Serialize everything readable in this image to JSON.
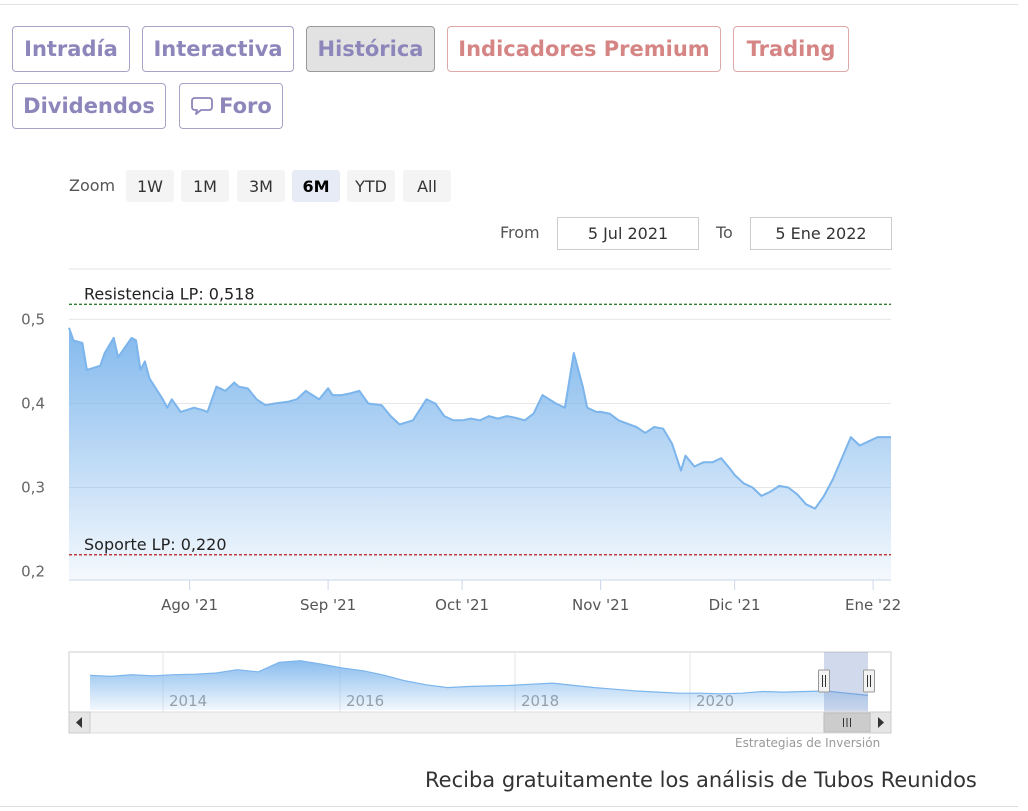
{
  "tabs": [
    {
      "label": "Intradía"
    },
    {
      "label": "Interactiva"
    },
    {
      "label": "Histórica"
    },
    {
      "label": "Indicadores Premium"
    },
    {
      "label": "Trading"
    },
    {
      "label": "Dividendos"
    },
    {
      "label": "Foro"
    }
  ],
  "zoom": {
    "label": "Zoom",
    "buttons": [
      "1W",
      "1M",
      "3M",
      "6M",
      "YTD",
      "All"
    ],
    "selected": "6M"
  },
  "range": {
    "from_label": "From",
    "from_value": "5 Jul 2021",
    "to_label": "To",
    "to_value": "5 Ene 2022"
  },
  "chart_data": {
    "type": "area",
    "xlim": [
      "2021-07-05",
      "2022-01-05"
    ],
    "ylim": [
      0.19,
      0.535
    ],
    "yticks": [
      0.2,
      0.3,
      0.4,
      0.5
    ],
    "ytick_labels": [
      "0,2",
      "0,3",
      "0,4",
      "0,5"
    ],
    "xticks": [
      {
        "date": "2021-08-01",
        "label": "Ago '21"
      },
      {
        "date": "2021-09-01",
        "label": "Sep '21"
      },
      {
        "date": "2021-10-01",
        "label": "Oct '21"
      },
      {
        "date": "2021-11-01",
        "label": "Nov '21"
      },
      {
        "date": "2021-12-01",
        "label": "Dic '21"
      },
      {
        "date": "2022-01-01",
        "label": "Ene '22"
      }
    ],
    "grid": true,
    "color": "#7cb5ec",
    "series": [
      {
        "x": [
          "2021-07-05",
          "2021-07-06",
          "2021-07-08",
          "2021-07-09",
          "2021-07-12",
          "2021-07-13",
          "2021-07-15",
          "2021-07-16",
          "2021-07-19",
          "2021-07-20",
          "2021-07-21",
          "2021-07-22",
          "2021-07-23",
          "2021-07-26",
          "2021-07-27",
          "2021-07-28",
          "2021-07-30",
          "2021-08-02",
          "2021-08-04",
          "2021-08-05",
          "2021-08-07",
          "2021-08-09",
          "2021-08-11",
          "2021-08-12",
          "2021-08-14",
          "2021-08-16",
          "2021-08-18",
          "2021-08-20",
          "2021-08-23",
          "2021-08-25",
          "2021-08-27",
          "2021-08-30",
          "2021-09-01",
          "2021-09-02",
          "2021-09-04",
          "2021-09-06",
          "2021-09-08",
          "2021-09-10",
          "2021-09-13",
          "2021-09-15",
          "2021-09-17",
          "2021-09-20",
          "2021-09-23",
          "2021-09-25",
          "2021-09-27",
          "2021-09-29",
          "2021-10-01",
          "2021-10-03",
          "2021-10-05",
          "2021-10-07",
          "2021-10-09",
          "2021-10-11",
          "2021-10-13",
          "2021-10-15",
          "2021-10-17",
          "2021-10-19",
          "2021-10-22",
          "2021-10-24",
          "2021-10-26",
          "2021-10-28",
          "2021-10-29",
          "2021-10-31",
          "2021-11-01",
          "2021-11-03",
          "2021-11-05",
          "2021-11-07",
          "2021-11-09",
          "2021-11-11",
          "2021-11-13",
          "2021-11-15",
          "2021-11-17",
          "2021-11-19",
          "2021-11-20",
          "2021-11-22",
          "2021-11-24",
          "2021-11-26",
          "2021-11-28",
          "2021-11-30",
          "2021-12-01",
          "2021-12-03",
          "2021-12-05",
          "2021-12-07",
          "2021-12-09",
          "2021-12-11",
          "2021-12-13",
          "2021-12-15",
          "2021-12-17",
          "2021-12-19",
          "2021-12-21",
          "2021-12-23",
          "2021-12-25",
          "2021-12-27",
          "2021-12-29",
          "2021-12-31",
          "2022-01-02",
          "2022-01-03",
          "2022-01-05"
        ],
        "y": [
          0.49,
          0.475,
          0.472,
          0.44,
          0.445,
          0.46,
          0.478,
          0.455,
          0.478,
          0.475,
          0.44,
          0.45,
          0.43,
          0.405,
          0.395,
          0.405,
          0.39,
          0.395,
          0.392,
          0.39,
          0.42,
          0.415,
          0.425,
          0.42,
          0.418,
          0.405,
          0.398,
          0.4,
          0.402,
          0.405,
          0.415,
          0.405,
          0.418,
          0.41,
          0.41,
          0.412,
          0.415,
          0.4,
          0.398,
          0.385,
          0.375,
          0.38,
          0.405,
          0.4,
          0.385,
          0.38,
          0.38,
          0.382,
          0.38,
          0.385,
          0.382,
          0.385,
          0.383,
          0.38,
          0.388,
          0.41,
          0.4,
          0.395,
          0.46,
          0.42,
          0.395,
          0.39,
          0.39,
          0.388,
          0.38,
          0.376,
          0.372,
          0.365,
          0.372,
          0.37,
          0.352,
          0.32,
          0.338,
          0.325,
          0.33,
          0.33,
          0.335,
          0.322,
          0.315,
          0.305,
          0.3,
          0.29,
          0.295,
          0.302,
          0.3,
          0.292,
          0.28,
          0.275,
          0.29,
          0.31,
          0.335,
          0.36,
          0.35,
          0.355,
          0.36,
          0.36,
          0.36
        ]
      }
    ],
    "plot_lines": [
      {
        "label": "Resistencia LP: 0,518",
        "value": 0.518,
        "color": "#2e7d32"
      },
      {
        "label": "Soporte LP: 0,220",
        "value": 0.22,
        "color": "#b71c1c"
      }
    ]
  },
  "navigator": {
    "year_labels": [
      "2014",
      "2016",
      "2018",
      "2020"
    ],
    "series": [
      0.62,
      0.6,
      0.63,
      0.61,
      0.63,
      0.64,
      0.66,
      0.72,
      0.68,
      0.85,
      0.88,
      0.82,
      0.75,
      0.7,
      0.62,
      0.52,
      0.45,
      0.4,
      0.42,
      0.43,
      0.44,
      0.46,
      0.48,
      0.44,
      0.4,
      0.37,
      0.34,
      0.32,
      0.3,
      0.3,
      0.29,
      0.3,
      0.33,
      0.32,
      0.33,
      0.34,
      0.3,
      0.26
    ]
  },
  "credit": "Estrategias de Inversión",
  "promo": "Reciba gratuitamente los análisis de Tubos Reunidos"
}
